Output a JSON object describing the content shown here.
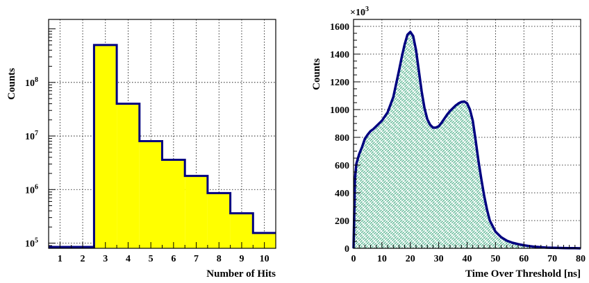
{
  "chart_data": [
    {
      "type": "bar",
      "subtype": "histogram-step",
      "xlabel": "Number of Hits",
      "ylabel": "Counts",
      "xlim": [
        0.5,
        10.5
      ],
      "ylim": [
        80000,
        1500000000
      ],
      "yscale": "log",
      "x_ticks": [
        "1",
        "2",
        "3",
        "4",
        "5",
        "6",
        "7",
        "8",
        "9",
        "10"
      ],
      "y_ticks": [
        {
          "base": "10",
          "exp": "5",
          "value": 100000
        },
        {
          "base": "10",
          "exp": "6",
          "value": 1000000
        },
        {
          "base": "10",
          "exp": "7",
          "value": 10000000
        },
        {
          "base": "10",
          "exp": "8",
          "value": 100000000
        }
      ],
      "bins": [
        {
          "x": 1,
          "value": 85000
        },
        {
          "x": 2,
          "value": 85000
        },
        {
          "x": 3,
          "value": 500000000
        },
        {
          "x": 4,
          "value": 40000000
        },
        {
          "x": 5,
          "value": 8000000
        },
        {
          "x": 6,
          "value": 3600000
        },
        {
          "x": 7,
          "value": 1800000
        },
        {
          "x": 8,
          "value": 860000
        },
        {
          "x": 9,
          "value": 360000
        },
        {
          "x": 10,
          "value": 155000
        }
      ],
      "grid": true,
      "colors": {
        "fill": "#ffff00",
        "line": "#000080"
      }
    },
    {
      "type": "area",
      "xlabel": "Time Over Threshold [ns]",
      "ylabel": "Counts",
      "y_multiplier": {
        "base": "×10",
        "exp": "3"
      },
      "xlim": [
        0,
        80
      ],
      "ylim": [
        0,
        1650
      ],
      "x_ticks": [
        "0",
        "10",
        "20",
        "30",
        "40",
        "50",
        "60",
        "70",
        "80"
      ],
      "y_ticks": [
        "0",
        "200",
        "400",
        "600",
        "800",
        "1000",
        "1200",
        "1400",
        "1600"
      ],
      "x": [
        0,
        0.5,
        1,
        2,
        3,
        4,
        5,
        6,
        7,
        8,
        10,
        12,
        14,
        16,
        17,
        18,
        19,
        20,
        21,
        22,
        23,
        24,
        25,
        26,
        27,
        28,
        29,
        30,
        31,
        32,
        33,
        34,
        35,
        36,
        37,
        38,
        39,
        40,
        41,
        42,
        43,
        44,
        45,
        46,
        47,
        48,
        50,
        52,
        54,
        56,
        58,
        60,
        62,
        64,
        66,
        68,
        70,
        72,
        74,
        76,
        78,
        80
      ],
      "y": [
        0,
        500,
        610,
        680,
        730,
        790,
        820,
        845,
        860,
        880,
        920,
        980,
        1090,
        1280,
        1380,
        1470,
        1540,
        1560,
        1530,
        1430,
        1280,
        1130,
        1010,
        930,
        890,
        870,
        870,
        880,
        905,
        935,
        965,
        990,
        1010,
        1030,
        1045,
        1055,
        1058,
        1045,
        1000,
        920,
        780,
        630,
        500,
        380,
        280,
        200,
        120,
        80,
        55,
        40,
        30,
        22,
        16,
        11,
        8,
        5,
        4,
        3,
        2,
        1,
        1,
        0
      ],
      "grid": true,
      "colors": {
        "fill": "#6fbfa0",
        "line": "#000080"
      }
    }
  ]
}
